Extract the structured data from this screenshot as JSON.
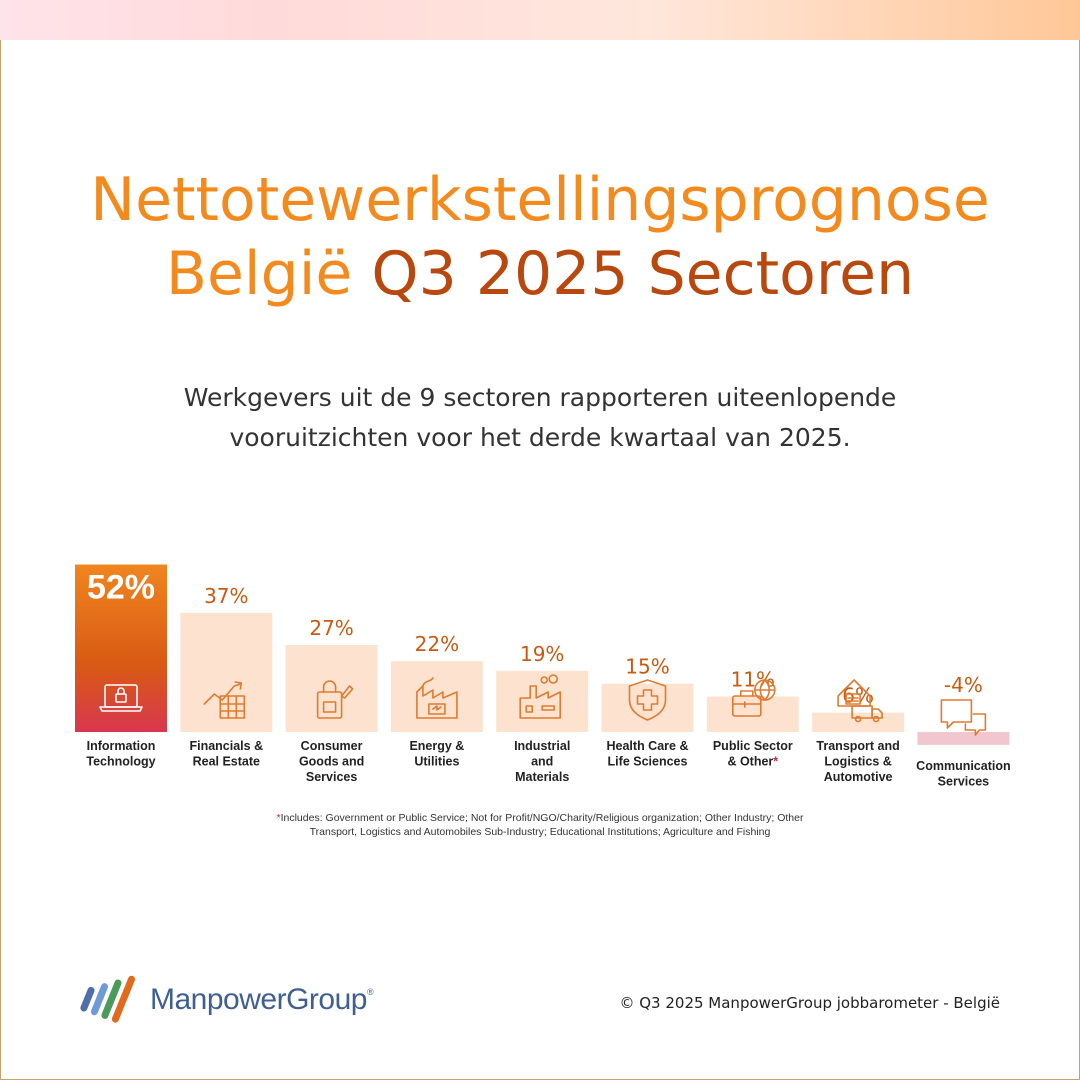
{
  "title": {
    "line1": "Nettotewerkstellingsprognose",
    "line2_part1": "België",
    "line2_part2": "Q3 2025 Sectoren"
  },
  "subtitle": {
    "line1": "Werkgevers uit de 9 sectoren rapporteren uiteenlopende",
    "line2": "vooruitzichten voor het derde kwartaal van 2025."
  },
  "chart_data": {
    "type": "bar",
    "categories": [
      "Information Technology",
      "Financials & Real Estate",
      "Consumer Goods and Services",
      "Energy & Utilities",
      "Industrial and Materials",
      "Health Care & Life Sciences",
      "Public Sector & Other*",
      "Transport and Logistics & Automotive",
      "Communication Services"
    ],
    "label_lines": [
      [
        "Information",
        "Technology"
      ],
      [
        "Financials &",
        "Real Estate"
      ],
      [
        "Consumer",
        "Goods and",
        "Services"
      ],
      [
        "Energy &",
        "Utilities"
      ],
      [
        "Industrial",
        "and",
        "Materials"
      ],
      [
        "Health Care &",
        "Life Sciences"
      ],
      [
        "Public Sector",
        "& Other*"
      ],
      [
        "Transport and",
        "Logistics &",
        "Automotive"
      ],
      [
        "Communication",
        "Services"
      ]
    ],
    "values": [
      52,
      37,
      27,
      22,
      19,
      15,
      11,
      6,
      -4
    ],
    "value_labels": [
      "52%",
      "37%",
      "27%",
      "22%",
      "19%",
      "15%",
      "11%",
      "6%",
      "-4%"
    ],
    "icons": [
      "laptop-lock-icon",
      "chart-building-icon",
      "shopping-bag-icon",
      "energy-factory-icon",
      "factory-icon",
      "medical-shield-icon",
      "briefcase-globe-icon",
      "warehouse-truck-icon",
      "chat-bubbles-icon"
    ],
    "ylim": [
      -4,
      52
    ],
    "colors": {
      "highlight_top": "#f08520",
      "highlight_bottom": "#d8374f",
      "positive": "#fde3cf",
      "negative": "#f2c6cf",
      "value_text": "#c95a10"
    }
  },
  "footnote": {
    "star": "*",
    "line1": "Includes: Government or Public Service; Not for Profit/NGO/Charity/Religious organization; Other Industry; Other",
    "line2": "Transport, Logistics and Automobiles Sub-Industry; Educational Institutions; Agriculture and Fishing"
  },
  "logo": {
    "name": "ManpowerGroup",
    "mark": "®"
  },
  "copyright": "© Q3 2025 ManpowerGroup jobbarometer - België"
}
